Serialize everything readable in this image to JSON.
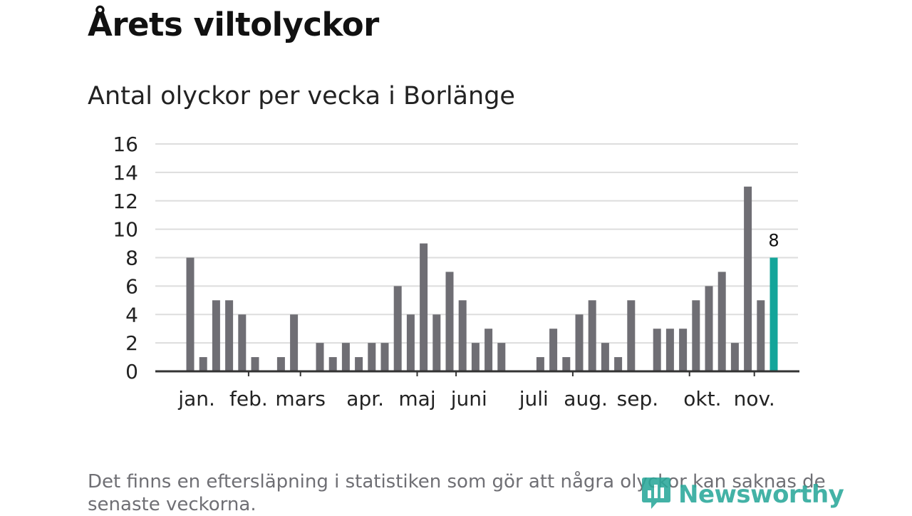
{
  "title": "Årets viltolyckor",
  "subtitle": "Antal olyckor per vecka i Borlänge",
  "footnote": "Det finns en eftersläpning i statistiken som gör att några olyckor kan saknas de senaste veckorna.",
  "brand": {
    "name": "Newsworthy",
    "icon": "newsworthy-logo-icon"
  },
  "colors": {
    "bar": "#6f6e74",
    "highlight": "#14a59a",
    "grid": "#dddddd",
    "axis": "#333333",
    "brand": "#2aa89a"
  },
  "chart_data": {
    "type": "bar",
    "title": "Antal olyckor per vecka i Borlänge",
    "xlabel": "",
    "ylabel": "",
    "ylim": [
      0,
      16
    ],
    "yticks": [
      0,
      2,
      4,
      6,
      8,
      10,
      12,
      14,
      16
    ],
    "weeks": [
      1,
      2,
      3,
      4,
      5,
      6,
      7,
      8,
      9,
      10,
      11,
      12,
      13,
      14,
      15,
      16,
      17,
      18,
      19,
      20,
      21,
      22,
      23,
      24,
      25,
      26,
      27,
      28,
      29,
      30,
      31,
      32,
      33,
      34,
      35,
      36,
      37,
      38,
      39,
      40,
      41,
      42,
      43,
      44,
      45,
      46
    ],
    "values": [
      8,
      1,
      5,
      5,
      4,
      1,
      0,
      1,
      4,
      0,
      2,
      1,
      2,
      1,
      2,
      2,
      6,
      4,
      9,
      4,
      7,
      5,
      2,
      3,
      2,
      0,
      0,
      1,
      3,
      1,
      4,
      5,
      2,
      1,
      5,
      0,
      3,
      3,
      3,
      5,
      6,
      7,
      2,
      13,
      5,
      8
    ],
    "highlight_index": 45,
    "highlight_label": "8",
    "month_labels": [
      {
        "label": "jan.",
        "week": 1.5
      },
      {
        "label": "feb.",
        "week": 5.5
      },
      {
        "label": "mars",
        "week": 9.5
      },
      {
        "label": "apr.",
        "week": 14.5
      },
      {
        "label": "maj",
        "week": 18.5
      },
      {
        "label": "juni",
        "week": 22.5
      },
      {
        "label": "juli",
        "week": 27.5
      },
      {
        "label": "aug.",
        "week": 31.5
      },
      {
        "label": "sep.",
        "week": 35.5
      },
      {
        "label": "okt.",
        "week": 40.5
      },
      {
        "label": "nov.",
        "week": 44.5
      }
    ],
    "month_ticks": [
      5,
      9,
      18,
      21,
      30,
      39,
      44
    ]
  }
}
